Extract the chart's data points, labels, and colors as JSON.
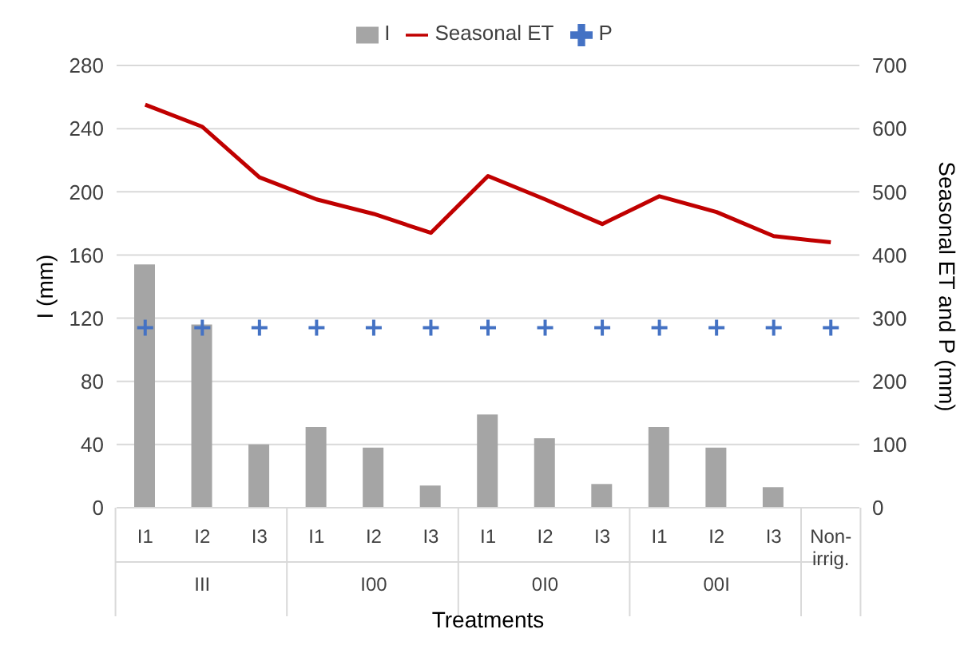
{
  "chart_data": {
    "type": "bar",
    "xlabel": "Treatments",
    "ylabel": "I (mm)",
    "y2label": "Seasonal ET and P (mm)",
    "categories": [
      "I1",
      "I2",
      "I3",
      "I1",
      "I2",
      "I3",
      "I1",
      "I2",
      "I3",
      "I1",
      "I2",
      "I3",
      "Non-irrig."
    ],
    "annotations": [
      "III",
      "I00",
      "0I0",
      "00I"
    ],
    "series": [
      {
        "name": "I",
        "color": "#a5a5a5",
        "values": [
          154,
          116,
          40,
          51,
          38,
          14,
          59,
          44,
          15,
          51,
          38,
          13,
          null
        ]
      },
      {
        "name": "Seasonal ET",
        "type": "line",
        "axis": "y2",
        "color": "#c00000",
        "marker": "none",
        "values": [
          638,
          603,
          523,
          488,
          465,
          435,
          525,
          488,
          449,
          493,
          468,
          430,
          420
        ]
      },
      {
        "name": "P",
        "type": "scatter",
        "axis": "y2",
        "color": "#4472c4",
        "marker": "cross",
        "values": [
          285,
          285,
          285,
          285,
          285,
          285,
          285,
          285,
          285,
          285,
          285,
          285,
          285
        ]
      }
    ],
    "ylim": [
      0,
      280
    ],
    "yticks": [
      0,
      40,
      80,
      120,
      160,
      200,
      240,
      280
    ],
    "y2lim": [
      0,
      700
    ],
    "y2ticks": [
      0,
      100,
      200,
      300,
      400,
      500,
      600,
      700
    ],
    "grid": "y",
    "legend": "top"
  }
}
